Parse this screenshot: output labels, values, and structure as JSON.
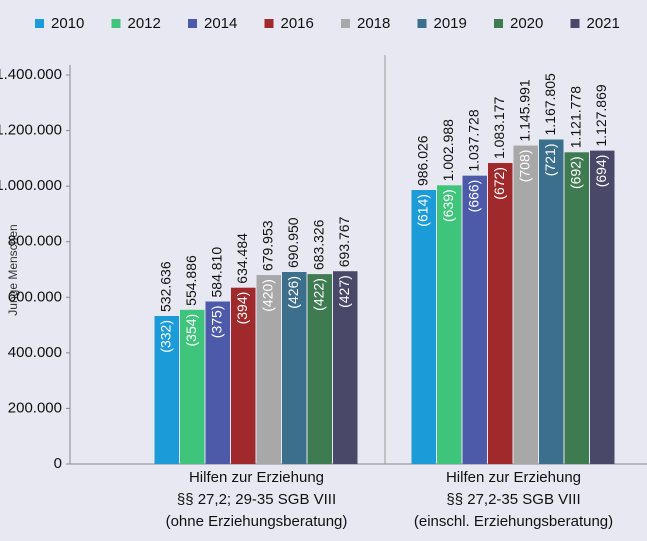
{
  "chart_data": {
    "type": "bar",
    "y_label": "Junge Menschen",
    "categories": [
      [
        "Hilfen zur Erziehung",
        "§§ 27,2; 29-35 SGB VIII",
        "(ohne Erziehungsberatung)"
      ],
      [
        "Hilfen zur Erziehung",
        "§§ 27,2-35 SGB VIII",
        "(einschl. Erziehungsberatung)"
      ]
    ],
    "series": [
      {
        "name": "2010",
        "color": "#1b9bd7",
        "values": [
          532636,
          986026
        ],
        "value_labels": [
          "532.636",
          "986.026"
        ],
        "inner_labels": [
          "(332)",
          "(614)"
        ]
      },
      {
        "name": "2012",
        "color": "#3ec47b",
        "values": [
          554886,
          1002988
        ],
        "value_labels": [
          "554.886",
          "1.002.988"
        ],
        "inner_labels": [
          "(354)",
          "(639)"
        ]
      },
      {
        "name": "2014",
        "color": "#4c5aa9",
        "values": [
          584810,
          1037728
        ],
        "value_labels": [
          "584.810",
          "1.037.728"
        ],
        "inner_labels": [
          "(375)",
          "(666)"
        ]
      },
      {
        "name": "2016",
        "color": "#a0292b",
        "values": [
          634484,
          1083177
        ],
        "value_labels": [
          "634.484",
          "1.083.177"
        ],
        "inner_labels": [
          "(394)",
          "(672)"
        ]
      },
      {
        "name": "2018",
        "color": "#a8a8a8",
        "values": [
          679953,
          1145991
        ],
        "value_labels": [
          "679.953",
          "1.145.991"
        ],
        "inner_labels": [
          "(420)",
          "(708)"
        ]
      },
      {
        "name": "2019",
        "color": "#3b6f8b",
        "values": [
          690950,
          1167805
        ],
        "value_labels": [
          "690.950",
          "1.167.805"
        ],
        "inner_labels": [
          "(426)",
          "(721)"
        ]
      },
      {
        "name": "2020",
        "color": "#3f7b50",
        "values": [
          683326,
          1121778
        ],
        "value_labels": [
          "683.326",
          "1.121.778"
        ],
        "inner_labels": [
          "(422)",
          "(692)"
        ]
      },
      {
        "name": "2021",
        "color": "#4a4868",
        "values": [
          693767,
          1127869
        ],
        "value_labels": [
          "693.767",
          "1.127.869"
        ],
        "inner_labels": [
          "(427)",
          "(694)"
        ]
      }
    ],
    "ylim": [
      0,
      1400000
    ],
    "yticks": [
      0,
      {
        "value": 200000,
        "label": "200.000"
      },
      {
        "value": 400000,
        "label": "400.000"
      },
      {
        "value": 600000,
        "label": "600.000"
      },
      {
        "value": 800000,
        "label": "800.000"
      },
      {
        "value": 1000000,
        "label": "1.000.000"
      },
      {
        "value": 1200000,
        "label": "1.200.000"
      },
      {
        "value": 1400000,
        "label": "1.400.000"
      }
    ],
    "legend": "top"
  }
}
